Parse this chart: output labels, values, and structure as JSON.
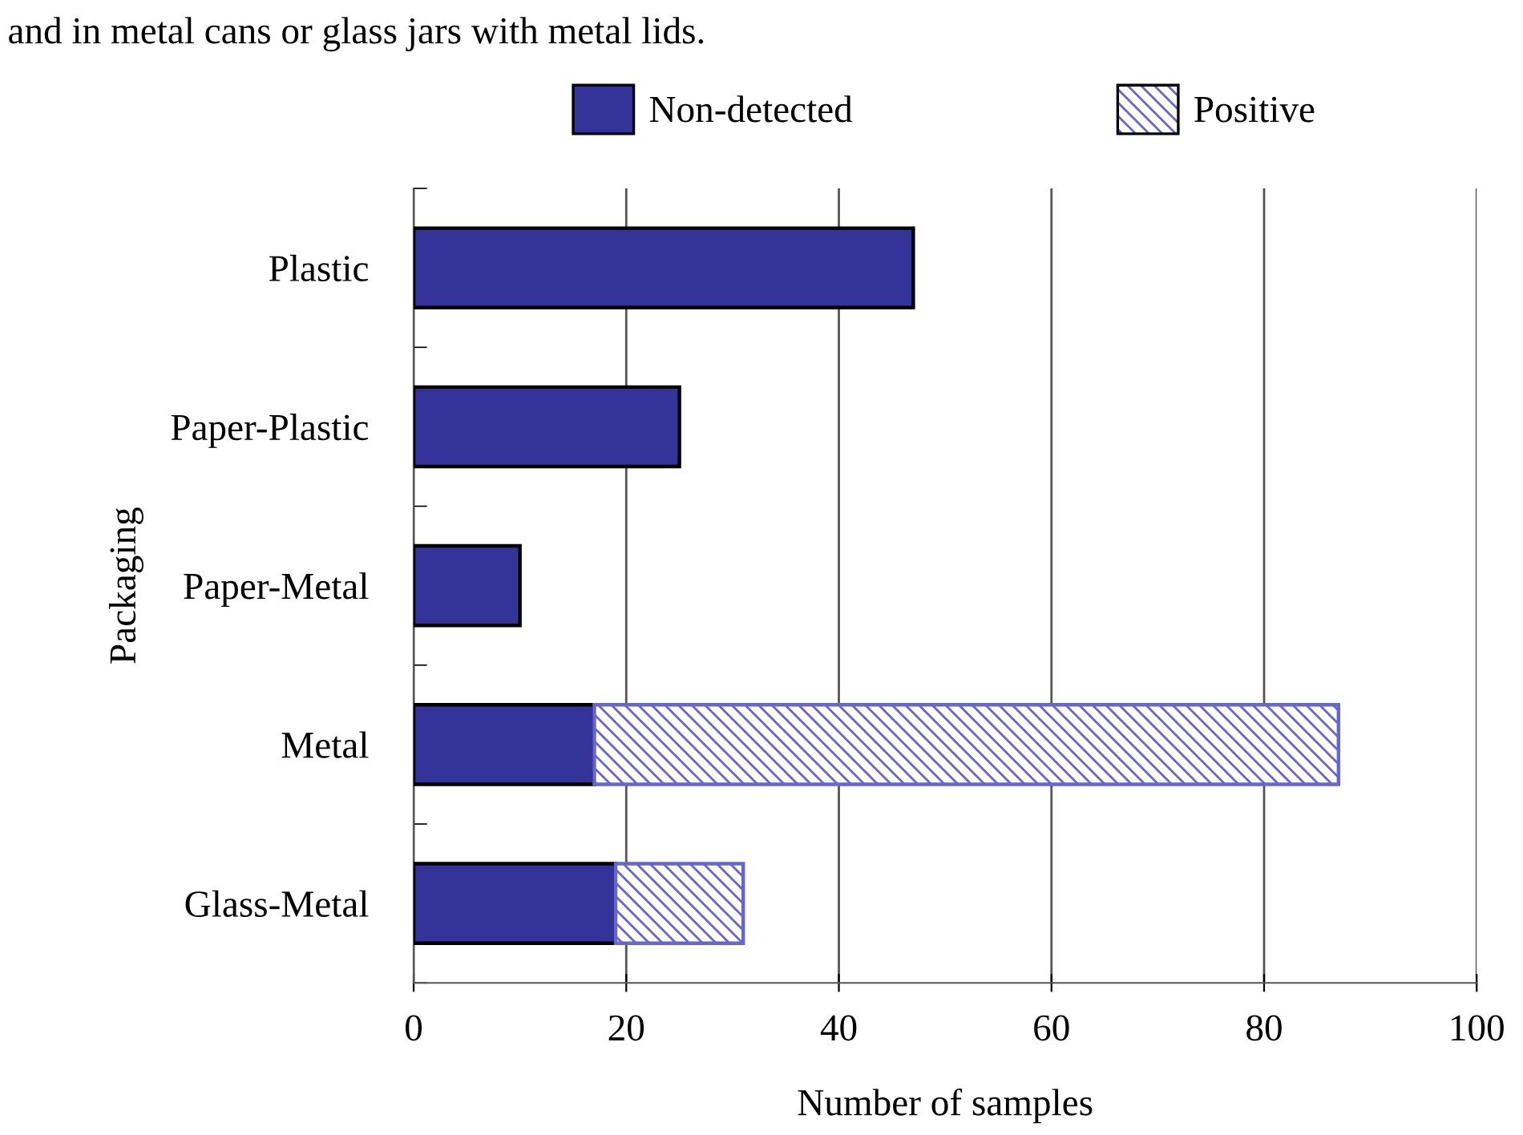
{
  "chart_data": {
    "type": "bar",
    "orientation": "horizontal",
    "stacked": true,
    "annotations": [
      "and in metal cans or glass jars with metal lids."
    ],
    "categories": [
      "Plastic",
      "Paper-Plastic",
      "Paper-Metal",
      "Metal",
      "Glass-Metal"
    ],
    "series": [
      {
        "name": "Non-detected",
        "color": "#333399",
        "values": [
          47,
          25,
          10,
          17,
          19
        ]
      },
      {
        "name": "Positive",
        "color": "#6666cc",
        "values": [
          0,
          0,
          0,
          70,
          12
        ]
      }
    ],
    "xlabel": "Number of samples",
    "ylabel": "Packaging",
    "xlim": [
      0,
      100
    ],
    "xticks": [
      0,
      20,
      40,
      60,
      80,
      100
    ],
    "grid": "x",
    "legend": "top"
  }
}
